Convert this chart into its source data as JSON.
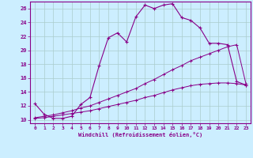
{
  "bg_color": "#cceeff",
  "line_color": "#880088",
  "grid_color": "#aacccc",
  "xlabel": "Windchill (Refroidissement éolien,°C)",
  "xlim": [
    -0.5,
    23.5
  ],
  "ylim": [
    9.5,
    27.0
  ],
  "yticks": [
    10,
    12,
    14,
    16,
    18,
    20,
    22,
    24,
    26
  ],
  "xticks": [
    0,
    1,
    2,
    3,
    4,
    5,
    6,
    7,
    8,
    9,
    10,
    11,
    12,
    13,
    14,
    15,
    16,
    17,
    18,
    19,
    20,
    21,
    22,
    23
  ],
  "line1_x": [
    0,
    1,
    2,
    3,
    4,
    5,
    6,
    7,
    8,
    9,
    10,
    11,
    12,
    13,
    14,
    15,
    16,
    17,
    18,
    19,
    20,
    21,
    22,
    23
  ],
  "line1_y": [
    12.3,
    10.8,
    10.2,
    10.2,
    10.5,
    12.2,
    13.2,
    17.8,
    21.8,
    22.5,
    21.2,
    24.8,
    26.5,
    26.0,
    26.5,
    26.7,
    24.7,
    24.3,
    23.2,
    21.0,
    21.0,
    20.8,
    15.5,
    15.0
  ],
  "line2_x": [
    0,
    1,
    2,
    3,
    4,
    5,
    6,
    7,
    8,
    9,
    10,
    11,
    12,
    13,
    14,
    15,
    16,
    17,
    18,
    19,
    20,
    21,
    22,
    23
  ],
  "line2_y": [
    10.3,
    10.5,
    10.7,
    11.0,
    11.3,
    11.7,
    12.0,
    12.5,
    13.0,
    13.5,
    14.0,
    14.5,
    15.2,
    15.8,
    16.5,
    17.2,
    17.8,
    18.5,
    19.0,
    19.5,
    20.0,
    20.5,
    20.8,
    15.2
  ],
  "line3_x": [
    0,
    1,
    2,
    3,
    4,
    5,
    6,
    7,
    8,
    9,
    10,
    11,
    12,
    13,
    14,
    15,
    16,
    17,
    18,
    19,
    20,
    21,
    22,
    23
  ],
  "line3_y": [
    10.2,
    10.3,
    10.5,
    10.7,
    10.9,
    11.1,
    11.3,
    11.6,
    11.9,
    12.2,
    12.5,
    12.8,
    13.2,
    13.5,
    13.9,
    14.3,
    14.6,
    14.9,
    15.1,
    15.2,
    15.3,
    15.3,
    15.2,
    15.0
  ]
}
